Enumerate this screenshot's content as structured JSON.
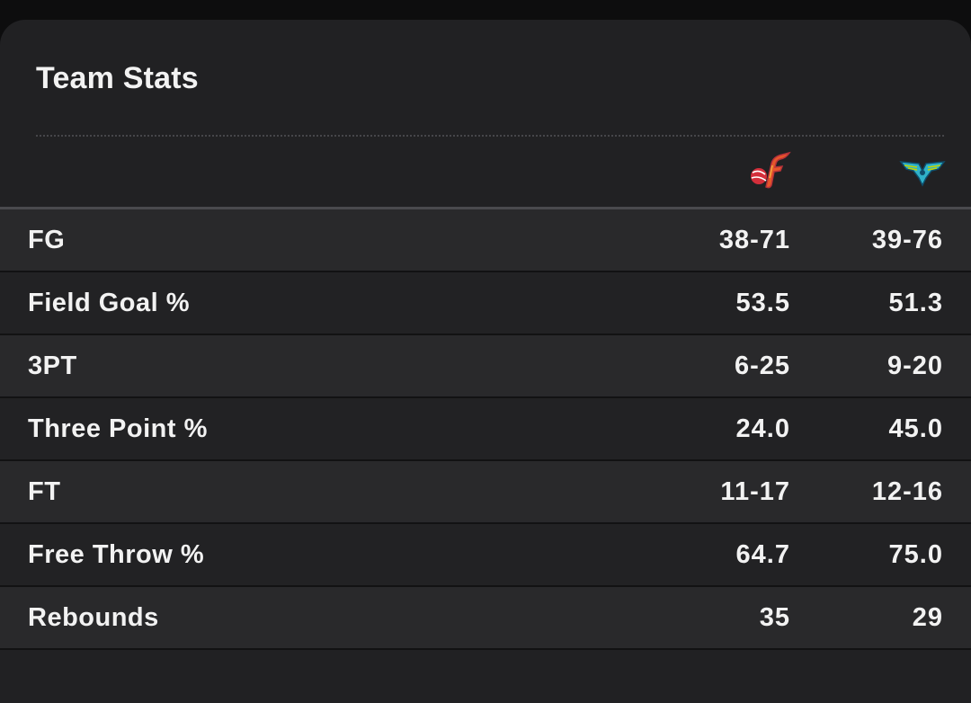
{
  "header": {
    "title": "Team Stats"
  },
  "teams": [
    {
      "icon": "indiana-fever-logo-icon",
      "color": "#e6562b"
    },
    {
      "icon": "dallas-wings-logo-icon",
      "color": "#2fb2c9"
    }
  ],
  "stats": [
    {
      "label": "FG",
      "team1": "38-71",
      "team2": "39-76"
    },
    {
      "label": "Field Goal %",
      "team1": "53.5",
      "team2": "51.3"
    },
    {
      "label": "3PT",
      "team1": "6-25",
      "team2": "9-20"
    },
    {
      "label": "Three Point %",
      "team1": "24.0",
      "team2": "45.0"
    },
    {
      "label": "FT",
      "team1": "11-17",
      "team2": "12-16"
    },
    {
      "label": "Free Throw %",
      "team1": "64.7",
      "team2": "75.0"
    },
    {
      "label": "Rebounds",
      "team1": "35",
      "team2": "29"
    }
  ]
}
